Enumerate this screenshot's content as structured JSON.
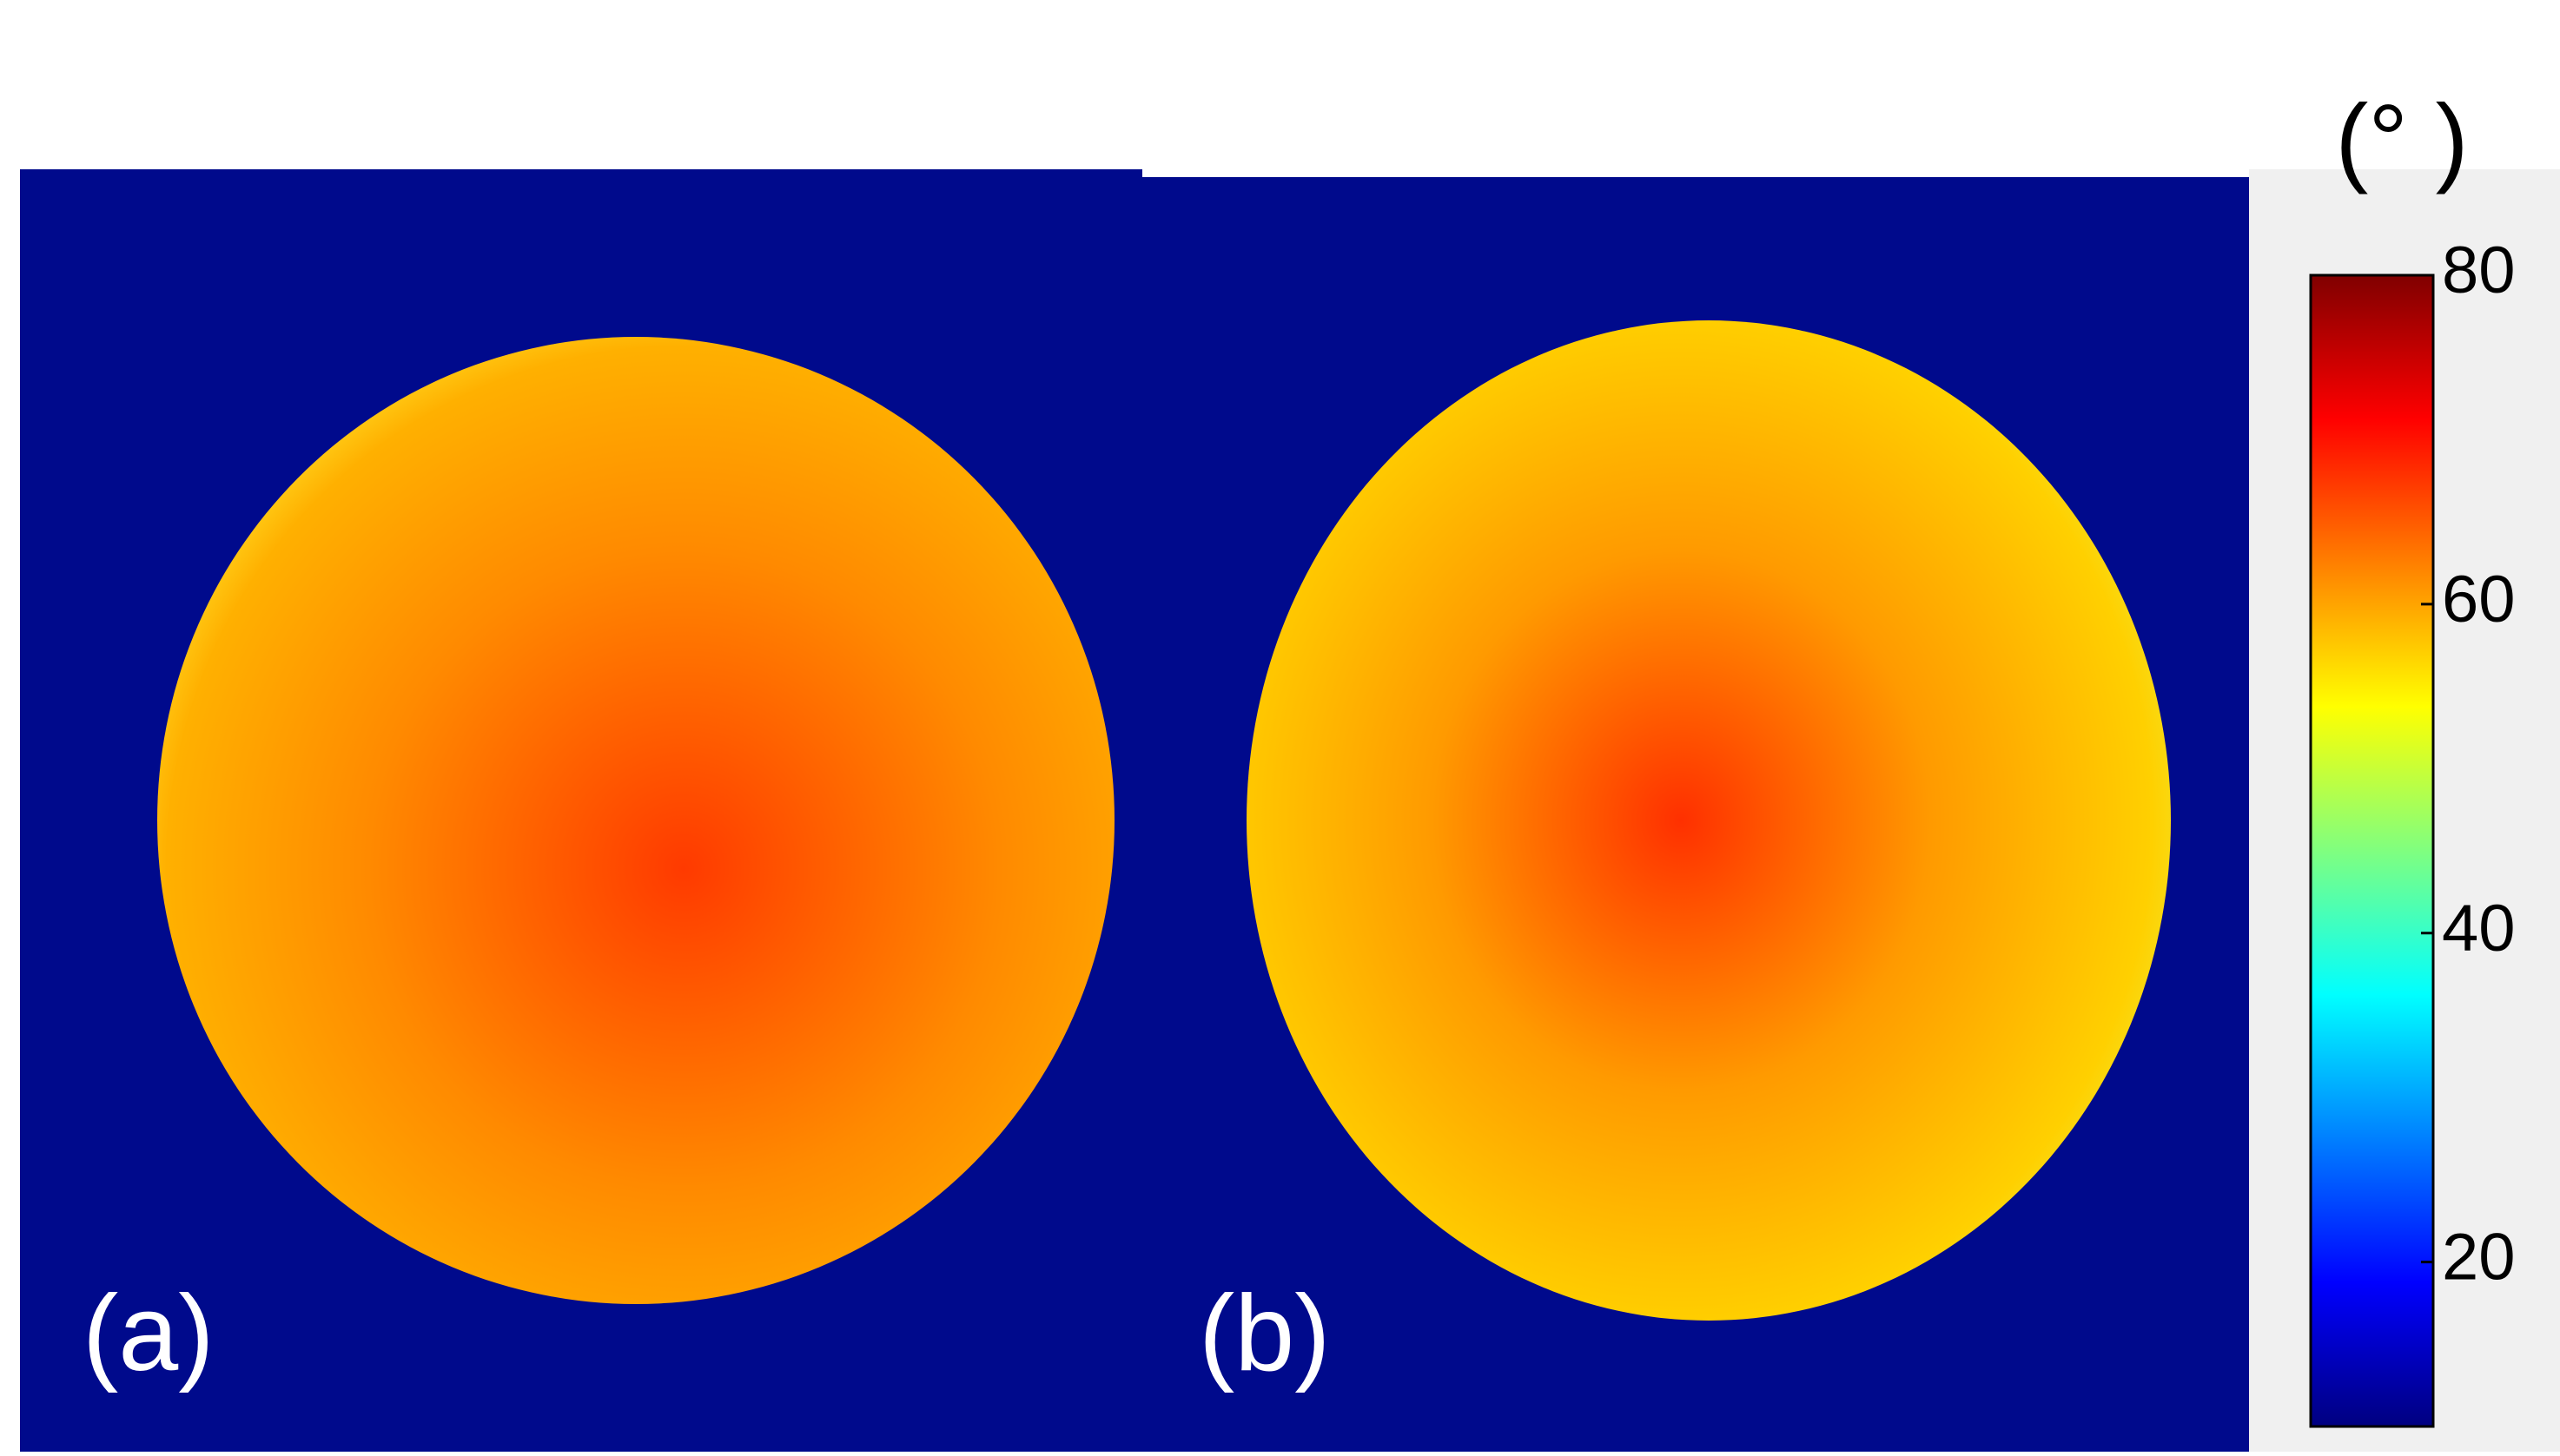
{
  "chart_data": {
    "type": "heatmap-colorbar",
    "panels": [
      {
        "label": "(a)"
      },
      {
        "label": "(b)"
      }
    ],
    "colorbar_label": "(°  )",
    "ylim": [
      10,
      80
    ],
    "yticks": [
      20,
      40,
      60,
      80
    ],
    "colormap": "jet"
  }
}
